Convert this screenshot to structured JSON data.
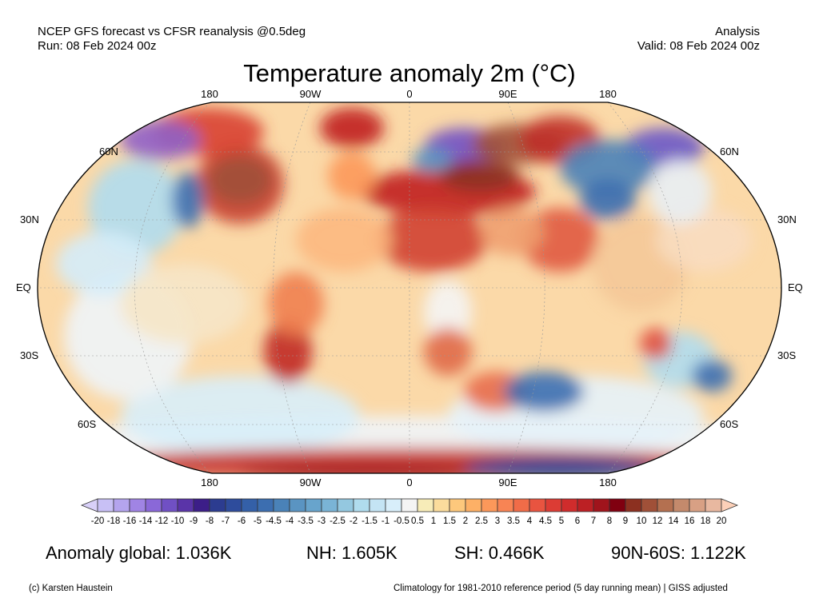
{
  "header": {
    "line1_left": "NCEP GFS forecast vs CFSR reanalysis @0.5deg",
    "line2_left": "Run: 08 Feb 2024 00z",
    "line1_right": "Analysis",
    "line2_right": "Valid: 08 Feb 2024 00z"
  },
  "title": "Temperature anomaly 2m (°C)",
  "map": {
    "lon_labels_top": [
      "180",
      "90W",
      "0",
      "90E",
      "180"
    ],
    "lon_labels_bottom": [
      "180",
      "90W",
      "0",
      "90E",
      "180"
    ],
    "lat_labels_left": [
      "60N",
      "30N",
      "EQ",
      "30S",
      "60S"
    ],
    "lat_labels_right": [
      "60N",
      "30N",
      "EQ",
      "30S",
      "60S"
    ]
  },
  "colorbar": {
    "labels": [
      "-20",
      "-18",
      "-16",
      "-14",
      "-12",
      "-10",
      "-9",
      "-8",
      "-7",
      "-6",
      "-5",
      "-4.5",
      "-4",
      "-3.5",
      "-3",
      "-2.5",
      "-2",
      "-1.5",
      "-1",
      "-0.5",
      "0.5",
      "1",
      "1.5",
      "2",
      "2.5",
      "3",
      "3.5",
      "4",
      "4.5",
      "5",
      "6",
      "7",
      "8",
      "9",
      "10",
      "12",
      "14",
      "16",
      "18",
      "20"
    ],
    "colors": [
      "#c8c0f5",
      "#b4a4ee",
      "#a084e4",
      "#8a68d8",
      "#7050c4",
      "#5a34a8",
      "#3c1e88",
      "#2c3c90",
      "#2e4c9c",
      "#3460a8",
      "#3c6eb0",
      "#4a82b8",
      "#5a94c2",
      "#68a4cc",
      "#7ab4d6",
      "#94c8e0",
      "#b0dcee",
      "#c4e4f4",
      "#d8eefa",
      "#f4f4f4",
      "#f7ecb8",
      "#fbdc9c",
      "#fdc87c",
      "#fdb066",
      "#fc985a",
      "#f88454",
      "#f06c48",
      "#e85440",
      "#dc3c34",
      "#d02c2c",
      "#bc2024",
      "#a0141c",
      "#800010",
      "#8c3020",
      "#a05038",
      "#b47050",
      "#c48a6c",
      "#d8a084",
      "#e8b8a0"
    ],
    "low_extend_color": "#d8d0f8",
    "high_extend_color": "#fcd0b8"
  },
  "stats": {
    "global": "Anomaly global: 1.036K",
    "nh": "NH: 1.605K",
    "sh": "SH: 0.466K",
    "band": "90N-60S: 1.122K"
  },
  "footer": {
    "credit": "(c) Karsten Haustein",
    "note": "Climatology for 1981-2010 reference period (5 day running mean) | GISS adjusted"
  }
}
